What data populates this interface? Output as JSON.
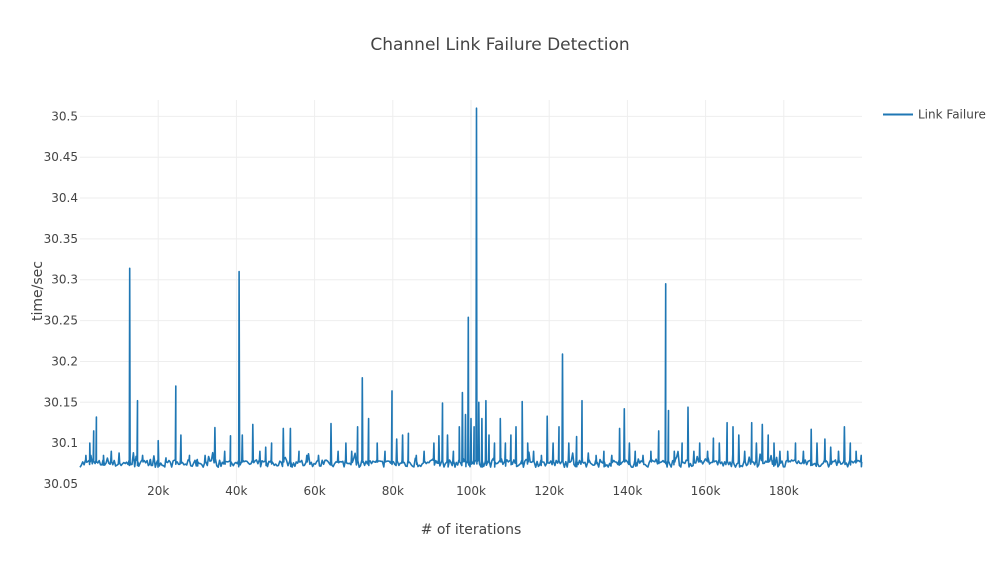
{
  "chart_data": {
    "type": "line",
    "title": "Channel Link Failure Detection",
    "xlabel": "# of iterations",
    "ylabel": "time/sec",
    "xlim": [
      0,
      200000
    ],
    "ylim": [
      30.05,
      30.52
    ],
    "xticks": [
      20000,
      40000,
      60000,
      80000,
      100000,
      120000,
      140000,
      160000,
      180000
    ],
    "xtick_labels": [
      "20k",
      "40k",
      "60k",
      "80k",
      "100k",
      "120k",
      "140k",
      "160k",
      "180k"
    ],
    "yticks": [
      30.05,
      30.1,
      30.15,
      30.2,
      30.25,
      30.3,
      30.35,
      30.4,
      30.45,
      30.5
    ],
    "ytick_labels": [
      "30.05",
      "30.1",
      "30.15",
      "30.2",
      "30.25",
      "30.3",
      "30.35",
      "30.4",
      "30.45",
      "30.5"
    ],
    "grid": true,
    "legend_position": "top-right",
    "series": [
      {
        "name": "Link Failure",
        "color": "#1f77b4",
        "baseline": 30.075,
        "spikes": [
          [
            1500,
            30.085
          ],
          [
            2500,
            30.1
          ],
          [
            3500,
            30.115
          ],
          [
            4200,
            30.132
          ],
          [
            6000,
            30.085
          ],
          [
            8000,
            30.09
          ],
          [
            10000,
            30.088
          ],
          [
            12700,
            30.314
          ],
          [
            14700,
            30.152
          ],
          [
            16000,
            30.085
          ],
          [
            18000,
            30.08
          ],
          [
            20000,
            30.103
          ],
          [
            22000,
            30.082
          ],
          [
            24500,
            30.17
          ],
          [
            25800,
            30.11
          ],
          [
            28000,
            30.085
          ],
          [
            30000,
            30.08
          ],
          [
            32000,
            30.085
          ],
          [
            34500,
            30.119
          ],
          [
            37000,
            30.09
          ],
          [
            38500,
            30.109
          ],
          [
            40700,
            30.31
          ],
          [
            41500,
            30.11
          ],
          [
            44200,
            30.123
          ],
          [
            46000,
            30.09
          ],
          [
            47500,
            30.095
          ],
          [
            49000,
            30.1
          ],
          [
            52000,
            30.118
          ],
          [
            53800,
            30.118
          ],
          [
            56000,
            30.09
          ],
          [
            58000,
            30.085
          ],
          [
            61000,
            30.085
          ],
          [
            64200,
            30.124
          ],
          [
            66000,
            30.09
          ],
          [
            68000,
            30.1
          ],
          [
            69500,
            30.09
          ],
          [
            71000,
            30.12
          ],
          [
            72200,
            30.18
          ],
          [
            73800,
            30.13
          ],
          [
            76000,
            30.1
          ],
          [
            78000,
            30.09
          ],
          [
            79800,
            30.164
          ],
          [
            81000,
            30.105
          ],
          [
            82500,
            30.11
          ],
          [
            84000,
            30.112
          ],
          [
            86000,
            30.085
          ],
          [
            88000,
            30.09
          ],
          [
            90500,
            30.1
          ],
          [
            91800,
            30.109
          ],
          [
            92700,
            30.149
          ],
          [
            94000,
            30.11
          ],
          [
            95500,
            30.09
          ],
          [
            97000,
            30.12
          ],
          [
            97800,
            30.162
          ],
          [
            98600,
            30.135
          ],
          [
            99300,
            30.254
          ],
          [
            100000,
            30.13
          ],
          [
            100800,
            30.12
          ],
          [
            101400,
            30.51
          ],
          [
            102000,
            30.15
          ],
          [
            102800,
            30.13
          ],
          [
            103800,
            30.152
          ],
          [
            104600,
            30.11
          ],
          [
            106000,
            30.1
          ],
          [
            107500,
            30.13
          ],
          [
            108800,
            30.1
          ],
          [
            110200,
            30.11
          ],
          [
            111500,
            30.12
          ],
          [
            113100,
            30.151
          ],
          [
            114500,
            30.1
          ],
          [
            116000,
            30.09
          ],
          [
            118000,
            30.085
          ],
          [
            119500,
            30.133
          ],
          [
            121000,
            30.1
          ],
          [
            122500,
            30.12
          ],
          [
            123400,
            30.209
          ],
          [
            125000,
            30.1
          ],
          [
            127000,
            30.108
          ],
          [
            128400,
            30.152
          ],
          [
            130000,
            30.088
          ],
          [
            132000,
            30.085
          ],
          [
            134000,
            30.09
          ],
          [
            136000,
            30.085
          ],
          [
            138000,
            30.118
          ],
          [
            139200,
            30.142
          ],
          [
            140500,
            30.1
          ],
          [
            142000,
            30.09
          ],
          [
            144000,
            30.085
          ],
          [
            146000,
            30.09
          ],
          [
            148000,
            30.115
          ],
          [
            149800,
            30.295
          ],
          [
            150500,
            30.14
          ],
          [
            152000,
            30.09
          ],
          [
            154000,
            30.1
          ],
          [
            155500,
            30.144
          ],
          [
            157000,
            30.09
          ],
          [
            158500,
            30.1
          ],
          [
            160500,
            30.09
          ],
          [
            162000,
            30.106
          ],
          [
            163500,
            30.1
          ],
          [
            165500,
            30.125
          ],
          [
            167000,
            30.12
          ],
          [
            168500,
            30.11
          ],
          [
            170000,
            30.09
          ],
          [
            171800,
            30.125
          ],
          [
            173000,
            30.1
          ],
          [
            174500,
            30.123
          ],
          [
            176000,
            30.11
          ],
          [
            177500,
            30.1
          ],
          [
            179000,
            30.09
          ],
          [
            181000,
            30.09
          ],
          [
            183000,
            30.1
          ],
          [
            185000,
            30.09
          ],
          [
            187000,
            30.117
          ],
          [
            188500,
            30.1
          ],
          [
            190500,
            30.105
          ],
          [
            192000,
            30.095
          ],
          [
            194000,
            30.09
          ],
          [
            195500,
            30.12
          ],
          [
            197000,
            30.1
          ],
          [
            198500,
            30.09
          ],
          [
            199800,
            30.085
          ]
        ]
      }
    ]
  }
}
